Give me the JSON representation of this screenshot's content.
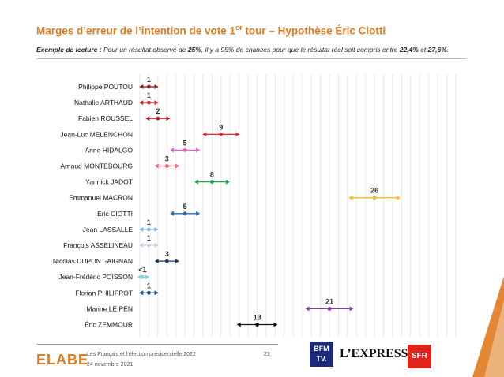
{
  "header": {
    "title_main": "Marges d’erreur de l’intention de vote 1",
    "title_sup": "er",
    "title_rest": " tour – Hypothèse Éric Ciotti",
    "reading_label": "Exemple de lecture :",
    "reading_p1": " Pour un résultat observé de ",
    "reading_v1": "25%",
    "reading_p2": ", il y a 95% de chances pour que le résultat réel soit compris entre ",
    "reading_v2": "22,4%",
    "reading_p3": " et ",
    "reading_v3": "27,6%",
    "reading_p4": "."
  },
  "chart_data": {
    "type": "errorbar",
    "xlim": [
      0,
      35
    ],
    "xticks": [
      "0",
      "5",
      "10",
      "15",
      "20",
      "25",
      "30",
      "35"
    ],
    "grid": true,
    "candidates": [
      {
        "name": "Philippe POUTOU",
        "label": "1",
        "value": 1,
        "low": 0.2,
        "high": 1.8,
        "color": "#8b1a1a"
      },
      {
        "name": "Nathalie ARTHAUD",
        "label": "1",
        "value": 1,
        "low": 0.2,
        "high": 1.8,
        "color": "#c0202a"
      },
      {
        "name": "Fabien ROUSSEL",
        "label": "2",
        "value": 2,
        "low": 0.9,
        "high": 3.1,
        "color": "#c0202a"
      },
      {
        "name": "Jean-Luc MELENCHON",
        "label": "9",
        "value": 9,
        "low": 7.2,
        "high": 10.8,
        "color": "#e0323c"
      },
      {
        "name": "Anne HIDALGO",
        "label": "5",
        "value": 5,
        "low": 3.6,
        "high": 6.4,
        "color": "#e85cc8"
      },
      {
        "name": "Arnaud MONTEBOURG",
        "label": "3",
        "value": 3,
        "low": 1.9,
        "high": 4.1,
        "color": "#e8607a"
      },
      {
        "name": "Yannick JADOT",
        "label": "8",
        "value": 8,
        "low": 6.3,
        "high": 9.7,
        "color": "#1ca84a"
      },
      {
        "name": "Emmanuel MACRON",
        "label": "26",
        "value": 26,
        "low": 23.4,
        "high": 28.6,
        "color": "#f4b830"
      },
      {
        "name": "Éric CIOTTI",
        "label": "5",
        "value": 5,
        "low": 3.6,
        "high": 6.4,
        "color": "#2b6cb0"
      },
      {
        "name": "Jean LASSALLE",
        "label": "1",
        "value": 1,
        "low": 0.2,
        "high": 1.8,
        "color": "#8ab4e0"
      },
      {
        "name": "François ASSELINEAU",
        "label": "1",
        "value": 1,
        "low": 0.2,
        "high": 1.8,
        "color": "#c8d4e0"
      },
      {
        "name": "Nicolas DUPONT-AIGNAN",
        "label": "3",
        "value": 3,
        "low": 1.9,
        "high": 4.1,
        "color": "#1a3a60"
      },
      {
        "name": "Jean-Frédéric POISSON",
        "label": "<1",
        "value": 0.3,
        "low": 0,
        "high": 0.8,
        "color": "#8ad0e0"
      },
      {
        "name": "Florian PHILIPPOT",
        "label": "1",
        "value": 1,
        "low": 0.2,
        "high": 1.8,
        "color": "#1a4a6a"
      },
      {
        "name": "Marine LE PEN",
        "label": "21",
        "value": 21,
        "low": 18.6,
        "high": 23.4,
        "color": "#8a3aa8"
      },
      {
        "name": "Éric ZEMMOUR",
        "label": "13",
        "value": 13,
        "low": 11,
        "high": 15,
        "color": "#111111"
      }
    ]
  },
  "footer": {
    "brand": "ELABE",
    "line1": "Les Français et l’élection présidentielle 2022",
    "line2": "24 novembre 2021",
    "page": "23",
    "partner1_a": "BFM",
    "partner1_b": "TV.",
    "partner2": "L’EXPRESS",
    "partner3": "SFR"
  }
}
